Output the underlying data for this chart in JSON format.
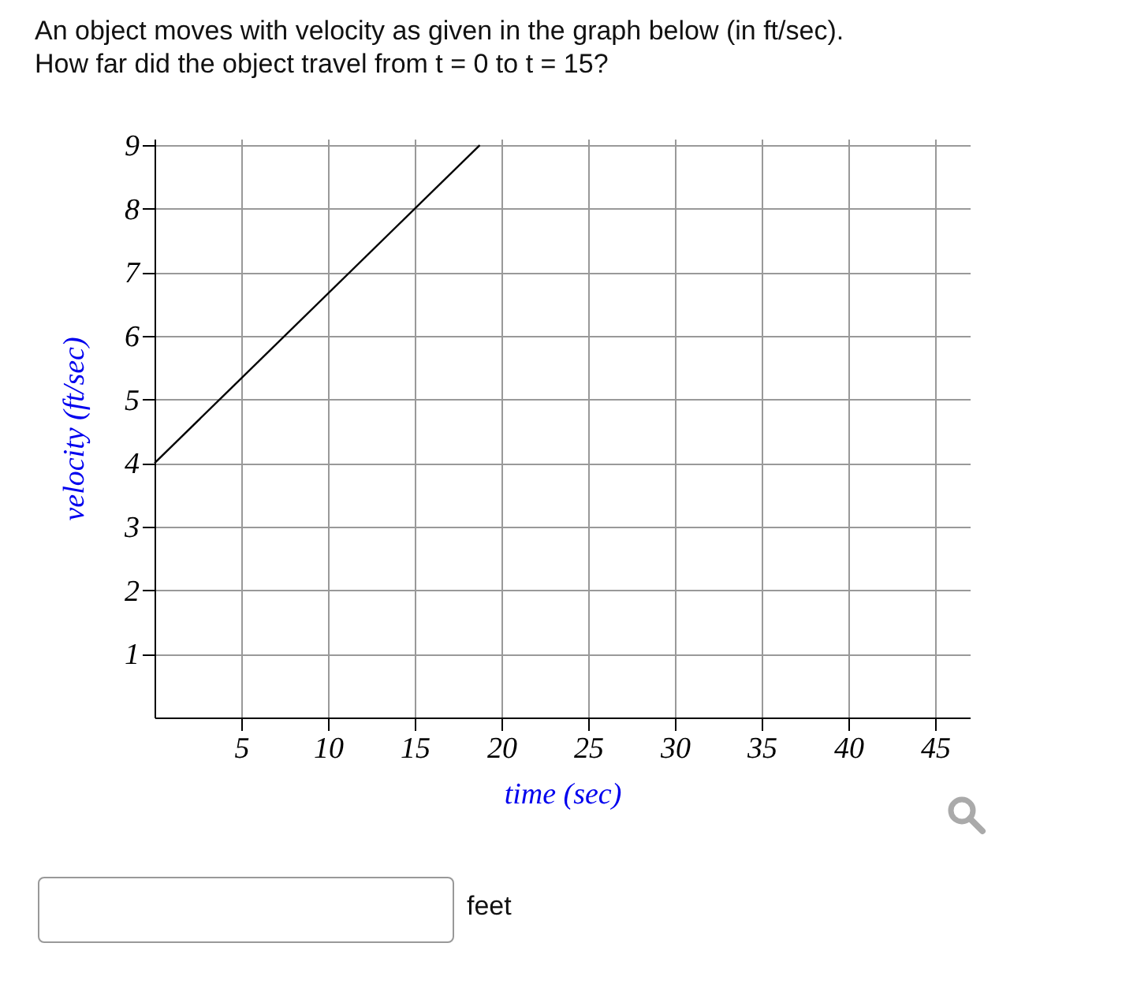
{
  "chart_data": {
    "type": "line",
    "title": "An object moves with velocity as given in the graph below (in ft/sec).",
    "subtitle": "How far did the object travel from t = 0 to t = 15?",
    "xlabel": "time (sec)",
    "ylabel": "velocity (ft/sec)",
    "series": [
      {
        "color": "#000000",
        "x": [
          0,
          18.75
        ],
        "values": [
          4,
          9
        ]
      }
    ],
    "xlim": [
      0,
      47
    ],
    "xticks": [
      5,
      10,
      15,
      20,
      25,
      30,
      35,
      40,
      45
    ],
    "ylim": [
      0,
      9.1
    ],
    "yticks": [
      1,
      2,
      3,
      4,
      5,
      6,
      7,
      8,
      9
    ],
    "grid": true,
    "marker": "none",
    "line_style": "solid",
    "legend": false,
    "annotations": [
      "feet"
    ]
  }
}
